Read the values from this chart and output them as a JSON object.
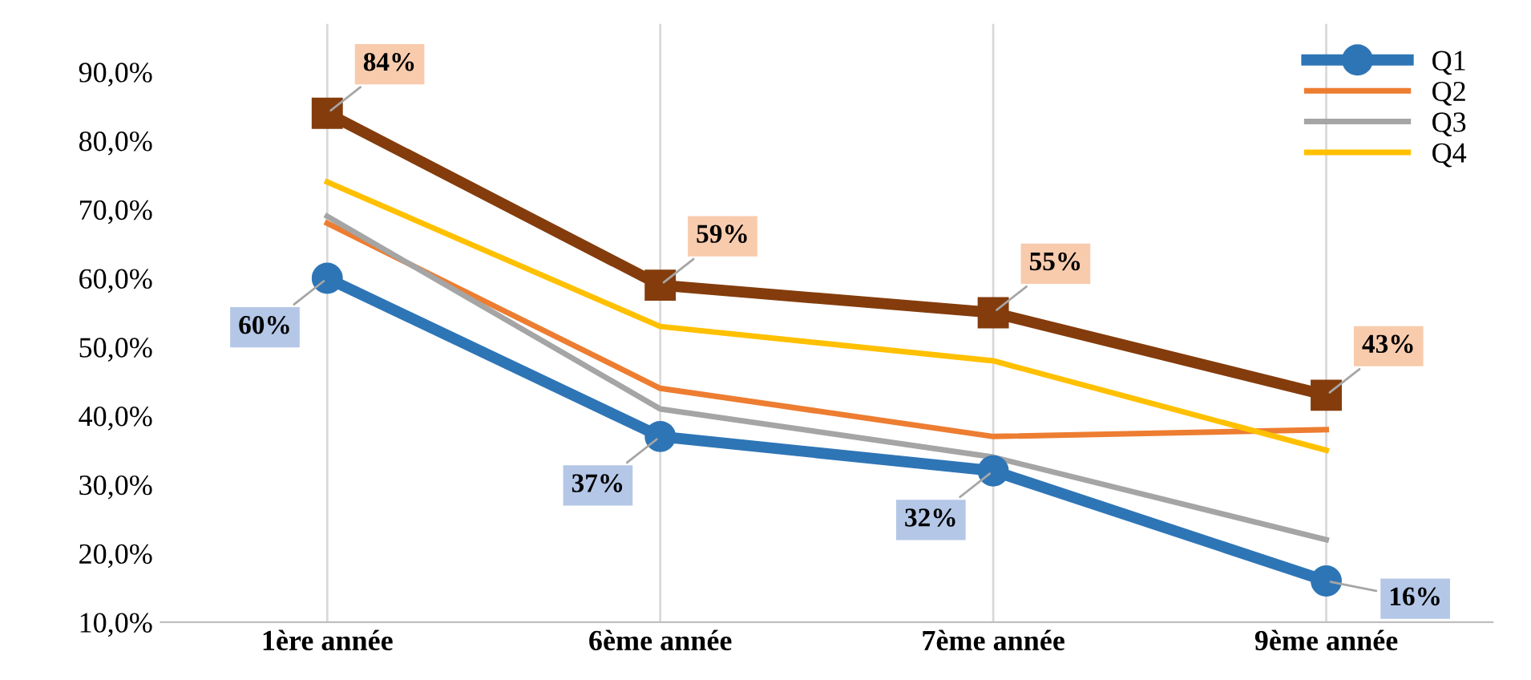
{
  "chart_data": {
    "type": "line",
    "categories": [
      "1ère année",
      "6ème année",
      "7ème année",
      "9ème année"
    ],
    "series": [
      {
        "name": "Q1",
        "color": "#2e75b6",
        "values": [
          60,
          37,
          32,
          16
        ],
        "marker": "circle",
        "value_labels": [
          "60%",
          "37%",
          "32%",
          "16%"
        ]
      },
      {
        "name": "Q2",
        "color": "#ed7d31",
        "values": [
          68,
          44,
          37,
          38
        ],
        "marker": "none"
      },
      {
        "name": "Q3",
        "color": "#a5a5a5",
        "values": [
          69,
          41,
          34,
          22
        ],
        "marker": "none"
      },
      {
        "name": "Q4",
        "color": "#ffc000",
        "values": [
          74,
          53,
          48,
          35
        ],
        "marker": "none"
      },
      {
        "color": "#843c0c",
        "values": [
          84,
          59,
          55,
          43
        ],
        "marker": "square",
        "value_labels": [
          "84%",
          "59%",
          "55%",
          "43%"
        ]
      }
    ],
    "ylim": [
      10,
      97
    ],
    "yticks": [
      {
        "value": 10,
        "label": "10,0%"
      },
      {
        "value": 20,
        "label": "20,0%"
      },
      {
        "value": 30,
        "label": "30,0%"
      },
      {
        "value": 40,
        "label": "40,0%"
      },
      {
        "value": 50,
        "label": "50,0%"
      },
      {
        "value": 60,
        "label": "60,0%"
      },
      {
        "value": 70,
        "label": "70,0%"
      },
      {
        "value": 80,
        "label": "80,0%"
      },
      {
        "value": 90,
        "label": "90,0%"
      }
    ],
    "grid": "x",
    "legend": "top right"
  }
}
